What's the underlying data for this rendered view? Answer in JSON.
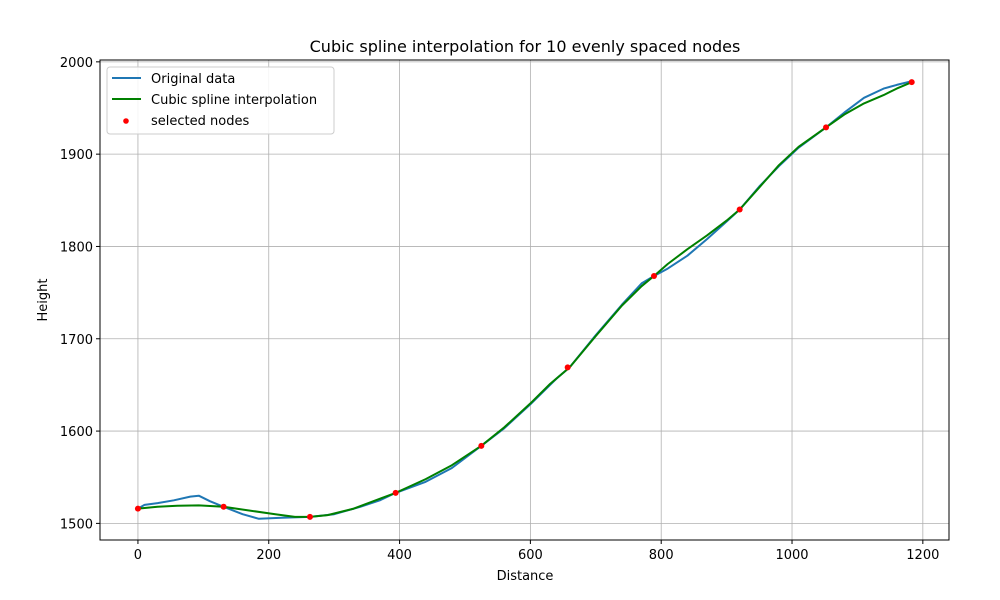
{
  "chart_data": {
    "type": "line",
    "title": "Cubic spline interpolation for 10 evenly spaced nodes",
    "xlabel": "Distance",
    "ylabel": "Height",
    "xlim": [
      -58,
      1240
    ],
    "ylim": [
      1482,
      2002
    ],
    "xticks": [
      0,
      200,
      400,
      600,
      800,
      1000,
      1200
    ],
    "yticks": [
      1500,
      1600,
      1700,
      1800,
      1900,
      2000
    ],
    "grid": true,
    "legend_position": "top-left",
    "series": [
      {
        "name": "Original data",
        "kind": "line",
        "color": "#1f77b4",
        "points": [
          [
            0,
            1516
          ],
          [
            10,
            1520
          ],
          [
            30,
            1522
          ],
          [
            55,
            1525
          ],
          [
            80,
            1529
          ],
          [
            93,
            1530
          ],
          [
            110,
            1524
          ],
          [
            131,
            1518
          ],
          [
            160,
            1510
          ],
          [
            185,
            1505
          ],
          [
            220,
            1506
          ],
          [
            263,
            1507
          ],
          [
            300,
            1510
          ],
          [
            340,
            1518
          ],
          [
            370,
            1525
          ],
          [
            394,
            1533
          ],
          [
            440,
            1545
          ],
          [
            480,
            1560
          ],
          [
            525,
            1584
          ],
          [
            560,
            1603
          ],
          [
            600,
            1629
          ],
          [
            640,
            1657
          ],
          [
            660,
            1669
          ],
          [
            700,
            1704
          ],
          [
            740,
            1737
          ],
          [
            770,
            1760
          ],
          [
            789,
            1768
          ],
          [
            810,
            1776
          ],
          [
            840,
            1790
          ],
          [
            870,
            1808
          ],
          [
            900,
            1827
          ],
          [
            920,
            1840
          ],
          [
            950,
            1865
          ],
          [
            980,
            1887
          ],
          [
            1010,
            1907
          ],
          [
            1052,
            1929
          ],
          [
            1080,
            1945
          ],
          [
            1110,
            1961
          ],
          [
            1140,
            1971
          ],
          [
            1160,
            1975
          ],
          [
            1183,
            1979
          ]
        ]
      },
      {
        "name": "Cubic spline interpolation",
        "kind": "line",
        "color": "#008000",
        "points": [
          [
            0,
            1516
          ],
          [
            30,
            1518
          ],
          [
            60,
            1519
          ],
          [
            93,
            1519.5
          ],
          [
            131,
            1518
          ],
          [
            170,
            1514
          ],
          [
            210,
            1510
          ],
          [
            240,
            1507
          ],
          [
            263,
            1507
          ],
          [
            290,
            1509
          ],
          [
            330,
            1516
          ],
          [
            360,
            1524
          ],
          [
            394,
            1533
          ],
          [
            440,
            1548
          ],
          [
            480,
            1563
          ],
          [
            525,
            1584
          ],
          [
            560,
            1604
          ],
          [
            600,
            1630
          ],
          [
            630,
            1651
          ],
          [
            660,
            1669
          ],
          [
            700,
            1703
          ],
          [
            740,
            1736
          ],
          [
            770,
            1757
          ],
          [
            789,
            1768
          ],
          [
            810,
            1781
          ],
          [
            840,
            1797
          ],
          [
            870,
            1812
          ],
          [
            900,
            1828
          ],
          [
            920,
            1840
          ],
          [
            950,
            1864
          ],
          [
            980,
            1888
          ],
          [
            1010,
            1908
          ],
          [
            1052,
            1929
          ],
          [
            1080,
            1943
          ],
          [
            1110,
            1955
          ],
          [
            1140,
            1964
          ],
          [
            1160,
            1971
          ],
          [
            1183,
            1978
          ]
        ]
      },
      {
        "name": "selected nodes",
        "kind": "scatter",
        "color": "#ff0000",
        "points": [
          [
            0,
            1516
          ],
          [
            131,
            1518
          ],
          [
            263,
            1507
          ],
          [
            394,
            1533
          ],
          [
            525,
            1584
          ],
          [
            657,
            1669
          ],
          [
            789,
            1768
          ],
          [
            920,
            1840
          ],
          [
            1052,
            1929
          ],
          [
            1183,
            1978
          ]
        ]
      }
    ]
  }
}
